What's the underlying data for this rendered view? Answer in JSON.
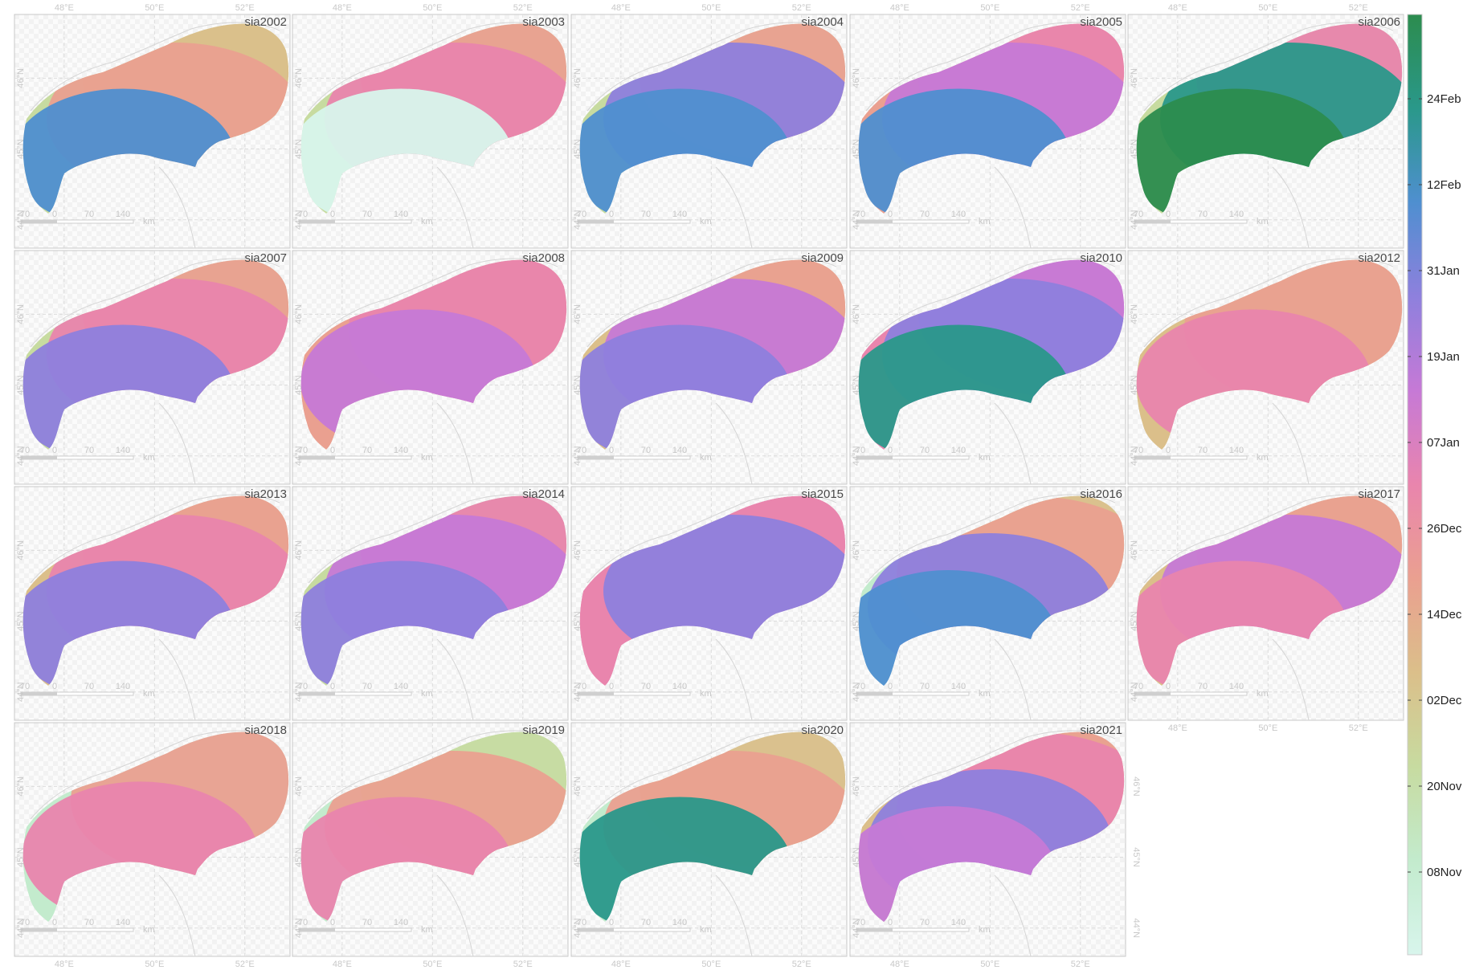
{
  "axes": {
    "lon_ticks": [
      {
        "value": 48,
        "label": "48°E"
      },
      {
        "value": 50,
        "label": "50°E"
      },
      {
        "value": 52,
        "label": "52°E"
      }
    ],
    "lat_ticks": [
      {
        "value": 44,
        "label": "44°N"
      },
      {
        "value": 45,
        "label": "45°N"
      },
      {
        "value": 46,
        "label": "46°N"
      }
    ],
    "lon_range": [
      46.9,
      53.0
    ],
    "lat_range": [
      43.6,
      46.9
    ],
    "grid": true,
    "top_axis_labels_row": 1,
    "bottom_axis_labels_row": 4,
    "right_axis_labels_panel": "sia2021"
  },
  "scale_bar": {
    "labels": [
      "70",
      "0",
      "70",
      "140"
    ],
    "unit": "km"
  },
  "legend": {
    "position": "right",
    "labels": [
      "24Feb",
      "12Feb",
      "31Jan",
      "19Jan",
      "07Jan",
      "26Dec",
      "14Dec",
      "02Dec",
      "20Nov",
      "08Nov"
    ],
    "gradient_bottom_to_top": [
      "#d8f5ec",
      "#c3ebcd",
      "#c7dba0",
      "#dbbf8a",
      "#eaa090",
      "#e985ad",
      "#c679d6",
      "#8e80dd",
      "#4f8fd0",
      "#2a988a",
      "#2c8c4e"
    ]
  },
  "panels": [
    {
      "title": "sia2002",
      "palette": [
        "#c7dba0",
        "#dbbf8a",
        "#eaa090",
        "#4f8fd0"
      ]
    },
    {
      "title": "sia2003",
      "palette": [
        "#c7dba0",
        "#eaa090",
        "#e985ad",
        "#d8f5ec"
      ]
    },
    {
      "title": "sia2004",
      "palette": [
        "#c7dba0",
        "#eaa090",
        "#8e80dd",
        "#4f8fd0"
      ]
    },
    {
      "title": "sia2005",
      "palette": [
        "#eaa090",
        "#e985ad",
        "#c679d6",
        "#4f8fd0"
      ]
    },
    {
      "title": "sia2006",
      "palette": [
        "#c7dba0",
        "#e985ad",
        "#2a988a",
        "#2c8c4e"
      ]
    },
    {
      "title": "sia2007",
      "palette": [
        "#c7dba0",
        "#eaa090",
        "#e985ad",
        "#8e80dd"
      ]
    },
    {
      "title": "sia2008",
      "palette": [
        "#eaa090",
        "#e985ad",
        "#c679d6"
      ]
    },
    {
      "title": "sia2009",
      "palette": [
        "#dbbf8a",
        "#eaa090",
        "#c679d6",
        "#8e80dd"
      ]
    },
    {
      "title": "sia2010",
      "palette": [
        "#e985ad",
        "#c679d6",
        "#8e80dd",
        "#2a988a"
      ]
    },
    {
      "title": "sia2012",
      "palette": [
        "#dbbf8a",
        "#eaa090",
        "#e985ad"
      ]
    },
    {
      "title": "sia2013",
      "palette": [
        "#dbbf8a",
        "#eaa090",
        "#e985ad",
        "#8e80dd"
      ]
    },
    {
      "title": "sia2014",
      "palette": [
        "#c7dba0",
        "#e985ad",
        "#c679d6",
        "#8e80dd"
      ]
    },
    {
      "title": "sia2015",
      "palette": [
        "#e985ad",
        "#8e80dd"
      ]
    },
    {
      "title": "sia2016",
      "palette": [
        "#c3ebcd",
        "#dbbf8a",
        "#eaa090",
        "#8e80dd",
        "#4f8fd0"
      ]
    },
    {
      "title": "sia2017",
      "palette": [
        "#dbbf8a",
        "#eaa090",
        "#c679d6",
        "#e985ad"
      ]
    },
    {
      "title": "sia2018",
      "palette": [
        "#c3ebcd",
        "#eaa090",
        "#e985ad"
      ]
    },
    {
      "title": "sia2019",
      "palette": [
        "#c3ebcd",
        "#c7dba0",
        "#eaa090",
        "#e985ad"
      ]
    },
    {
      "title": "sia2020",
      "palette": [
        "#c3ebcd",
        "#dbbf8a",
        "#eaa090",
        "#2a988a"
      ]
    },
    {
      "title": "sia2021",
      "palette": [
        "#dbbf8a",
        "#eaa090",
        "#e985ad",
        "#8e80dd",
        "#c679d6"
      ]
    }
  ]
}
